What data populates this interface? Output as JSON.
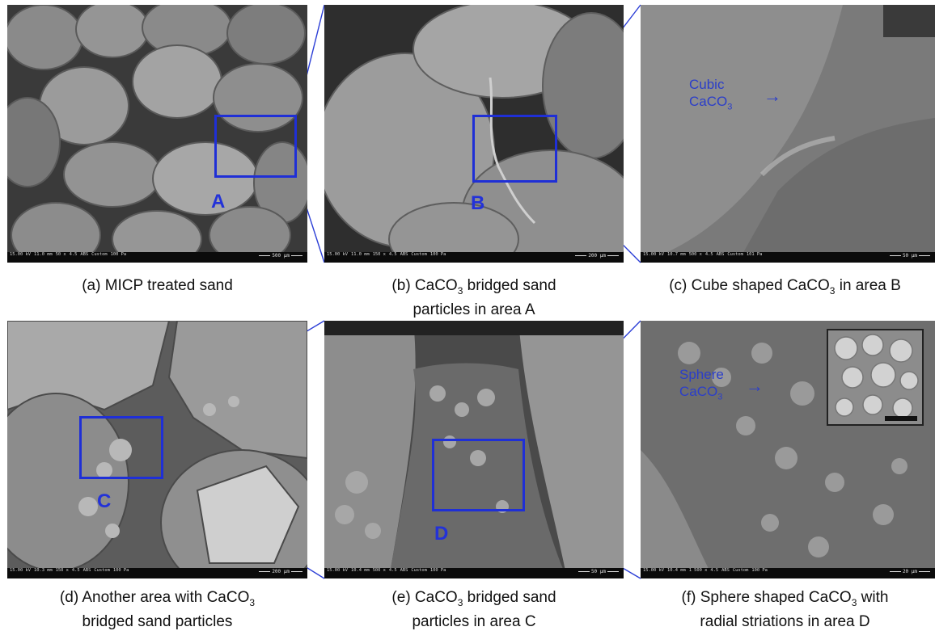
{
  "colors": {
    "highlight_box": "#1f2fd6",
    "annotation_text": "#2b3ec9",
    "caption_text": "#111111"
  },
  "panels": [
    {
      "id": "a",
      "area_label": "A",
      "sem": {
        "hv": "15.00 kV",
        "wd": "11.0 mm",
        "mag": "50 x",
        "spot": "4.5",
        "det": "ABS",
        "mode": "Custom",
        "pressure": "100 Pa",
        "scale": "500 µm"
      },
      "caption_prefix": "(a) MICP treated sand",
      "caption_mid": "",
      "caption_suffix": "",
      "caption_line2": ""
    },
    {
      "id": "b",
      "area_label": "B",
      "sem": {
        "hv": "15.00 kV",
        "wd": "11.0 mm",
        "mag": "150 x",
        "spot": "4.5",
        "det": "ABS",
        "mode": "Custom",
        "pressure": "100 Pa",
        "scale": "200 µm"
      },
      "caption_prefix": "(b) CaCO",
      "caption_mid": "3",
      "caption_suffix": " bridged sand",
      "caption_line2": "particles in area A"
    },
    {
      "id": "c",
      "area_label": "",
      "annotation_line1": "Cubic",
      "annotation_line2_prefix": "CaCO",
      "annotation_line2_sub": "3",
      "annotation_arrow": "→",
      "sem": {
        "hv": "15.00 kV",
        "wd": "10.7 mm",
        "mag": "500 x",
        "spot": "4.5",
        "det": "ABS",
        "mode": "Custom",
        "pressure": "101 Pa",
        "scale": "50 µm"
      },
      "caption_prefix": "(c) Cube shaped CaCO",
      "caption_mid": "3",
      "caption_suffix": " in area B",
      "caption_line2": ""
    },
    {
      "id": "d",
      "area_label": "C",
      "sem": {
        "hv": "15.00 kV",
        "wd": "10.3 mm",
        "mag": "150 x",
        "spot": "4.5",
        "det": "ABS",
        "mode": "Custom",
        "pressure": "100 Pa",
        "scale": "200 µm"
      },
      "caption_prefix": "(d) Another area with CaCO",
      "caption_mid": "3",
      "caption_suffix": "",
      "caption_line2": "bridged sand particles"
    },
    {
      "id": "e",
      "area_label": "D",
      "sem": {
        "hv": "15.00 kV",
        "wd": "10.4 mm",
        "mag": "500 x",
        "spot": "4.5",
        "det": "ABS",
        "mode": "Custom",
        "pressure": "100 Pa",
        "scale": "50 µm"
      },
      "caption_prefix": "(e) CaCO",
      "caption_mid": "3",
      "caption_suffix": " bridged sand",
      "caption_line2": "particles in area C"
    },
    {
      "id": "f",
      "area_label": "",
      "annotation_line1": "Sphere",
      "annotation_line2_prefix": "CaCO",
      "annotation_line2_sub": "3",
      "annotation_arrow": "→",
      "sem": {
        "hv": "15.00 kV",
        "wd": "10.4 mm",
        "mag": "1 500 x",
        "spot": "4.5",
        "det": "ABS",
        "mode": "Custom",
        "pressure": "100 Pa",
        "scale": "20 µm"
      },
      "caption_prefix": "(f) Sphere shaped CaCO",
      "caption_mid": "3",
      "caption_suffix": " with",
      "caption_line2": "radial striations in area D"
    }
  ]
}
